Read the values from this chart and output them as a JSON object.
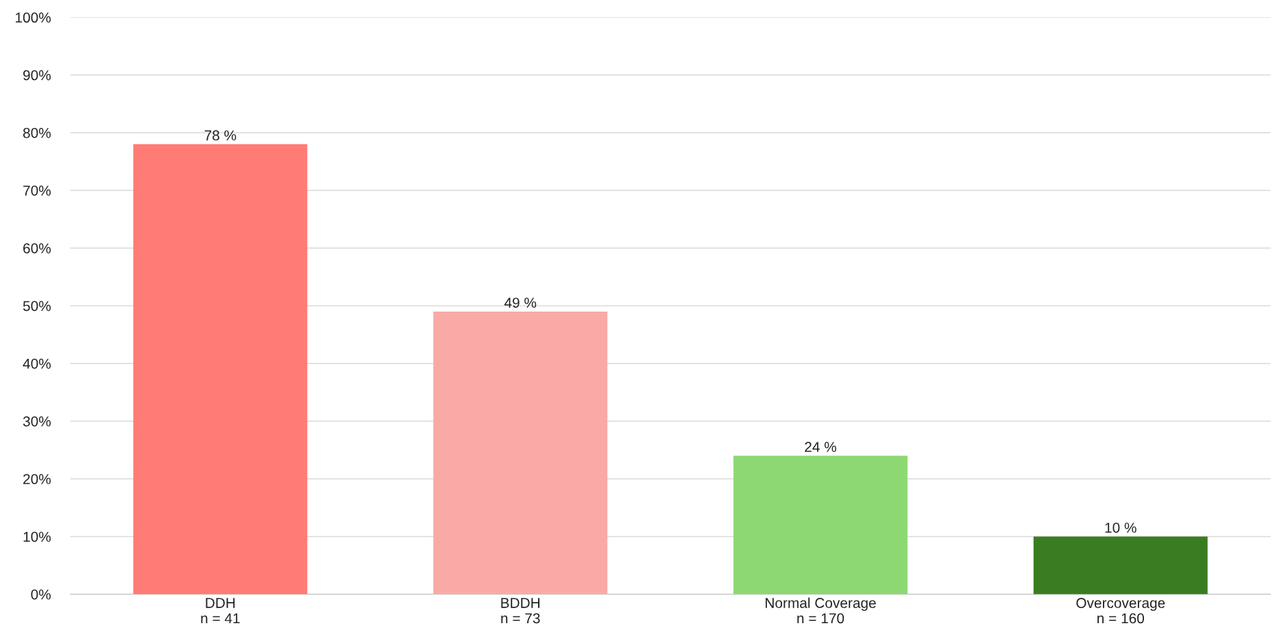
{
  "chart_data": {
    "type": "bar",
    "categories": [
      "DDH\nn = 41",
      "BDDH\nn = 73",
      "Normal Coverage\nn = 170",
      "Overcoverage\nn = 160"
    ],
    "values": [
      78,
      49,
      24,
      10
    ],
    "colors": [
      "#ff7b76",
      "#f9aaa7",
      "#8ed873",
      "#3a7c22"
    ],
    "value_labels": [
      "78 %",
      "49 %",
      "24 %",
      "10 %"
    ],
    "ylim": [
      0,
      100
    ],
    "yticks": [
      {
        "value": 0,
        "label": "0%"
      },
      {
        "value": 10,
        "label": "10%"
      },
      {
        "value": 20,
        "label": "20%"
      },
      {
        "value": 30,
        "label": "30%"
      },
      {
        "value": 40,
        "label": "40%"
      },
      {
        "value": 50,
        "label": "50%"
      },
      {
        "value": 60,
        "label": "60%"
      },
      {
        "value": 70,
        "label": "70%"
      },
      {
        "value": 80,
        "label": "80%"
      },
      {
        "value": 90,
        "label": "90%"
      },
      {
        "value": 100,
        "label": "100%"
      }
    ],
    "grid": "y"
  }
}
